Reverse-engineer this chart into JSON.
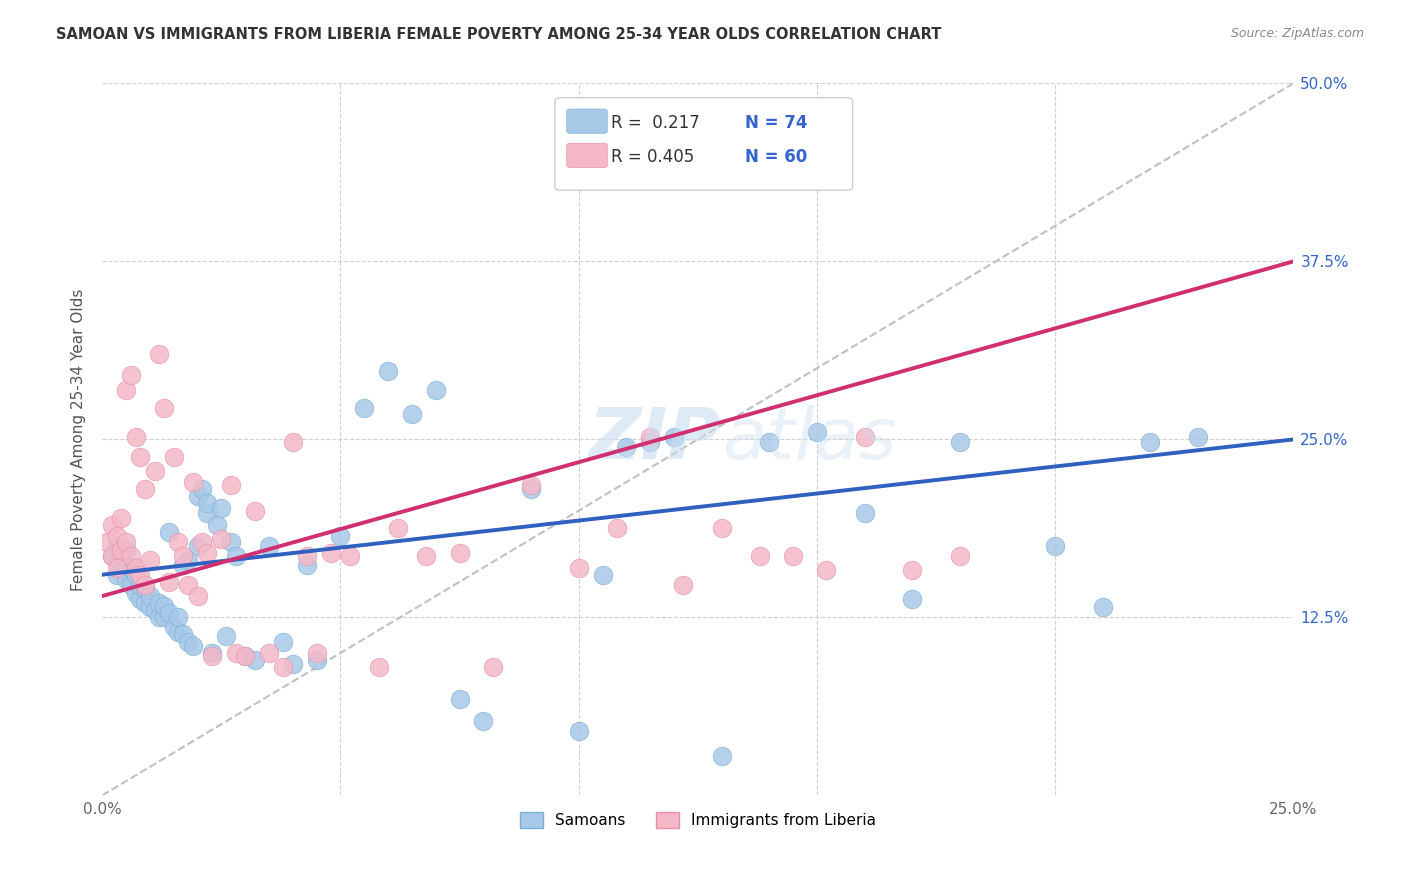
{
  "title": "SAMOAN VS IMMIGRANTS FROM LIBERIA FEMALE POVERTY AMONG 25-34 YEAR OLDS CORRELATION CHART",
  "source": "Source: ZipAtlas.com",
  "ylabel": "Female Poverty Among 25-34 Year Olds",
  "x_min": 0.0,
  "x_max": 0.25,
  "y_min": 0.0,
  "y_max": 0.5,
  "samoans_R": 0.217,
  "samoans_N": 74,
  "liberia_R": 0.405,
  "liberia_N": 60,
  "blue_marker_color": "#a8c8e8",
  "blue_marker_edge": "#7ab0d4",
  "pink_marker_color": "#f4b8c8",
  "pink_marker_edge": "#e890a8",
  "blue_line_color": "#3060c0",
  "pink_line_color": "#d03070",
  "dashed_line_color": "#c0c0c0",
  "legend_label_blue": "Samoans",
  "legend_label_pink": "Immigrants from Liberia",
  "background_color": "#ffffff",
  "grid_color": "#d0d0d0",
  "title_color": "#333333",
  "source_color": "#888888",
  "ylabel_color": "#555555",
  "tick_color": "#3366cc",
  "legend_R_color": "#333333",
  "legend_N_color": "#3366cc",
  "watermark_color": "#c8ddf0",
  "samoans_x": [
    0.002,
    0.003,
    0.003,
    0.004,
    0.004,
    0.005,
    0.005,
    0.005,
    0.006,
    0.006,
    0.007,
    0.007,
    0.008,
    0.008,
    0.009,
    0.009,
    0.01,
    0.01,
    0.011,
    0.012,
    0.012,
    0.013,
    0.013,
    0.014,
    0.014,
    0.015,
    0.016,
    0.016,
    0.017,
    0.017,
    0.018,
    0.018,
    0.019,
    0.02,
    0.02,
    0.021,
    0.022,
    0.022,
    0.023,
    0.024,
    0.025,
    0.026,
    0.027,
    0.028,
    0.03,
    0.032,
    0.035,
    0.038,
    0.04,
    0.043,
    0.045,
    0.05,
    0.055,
    0.06,
    0.065,
    0.07,
    0.075,
    0.08,
    0.09,
    0.1,
    0.105,
    0.11,
    0.115,
    0.12,
    0.13,
    0.14,
    0.15,
    0.16,
    0.17,
    0.18,
    0.2,
    0.21,
    0.22,
    0.23
  ],
  "samoans_y": [
    0.168,
    0.155,
    0.175,
    0.16,
    0.17,
    0.152,
    0.162,
    0.172,
    0.148,
    0.16,
    0.142,
    0.155,
    0.138,
    0.148,
    0.135,
    0.145,
    0.132,
    0.14,
    0.13,
    0.125,
    0.135,
    0.125,
    0.133,
    0.185,
    0.128,
    0.118,
    0.115,
    0.125,
    0.113,
    0.162,
    0.108,
    0.165,
    0.105,
    0.175,
    0.21,
    0.215,
    0.198,
    0.205,
    0.1,
    0.19,
    0.202,
    0.112,
    0.178,
    0.168,
    0.098,
    0.095,
    0.175,
    0.108,
    0.092,
    0.162,
    0.095,
    0.182,
    0.272,
    0.298,
    0.268,
    0.285,
    0.068,
    0.052,
    0.215,
    0.045,
    0.155,
    0.245,
    0.248,
    0.252,
    0.028,
    0.248,
    0.255,
    0.198,
    0.138,
    0.248,
    0.175,
    0.132,
    0.248,
    0.252
  ],
  "liberia_x": [
    0.001,
    0.002,
    0.002,
    0.003,
    0.003,
    0.004,
    0.004,
    0.005,
    0.005,
    0.006,
    0.006,
    0.007,
    0.007,
    0.008,
    0.008,
    0.009,
    0.009,
    0.01,
    0.011,
    0.012,
    0.013,
    0.014,
    0.015,
    0.016,
    0.017,
    0.018,
    0.019,
    0.02,
    0.021,
    0.022,
    0.023,
    0.025,
    0.027,
    0.028,
    0.03,
    0.032,
    0.035,
    0.038,
    0.04,
    0.043,
    0.045,
    0.048,
    0.052,
    0.058,
    0.062,
    0.068,
    0.075,
    0.082,
    0.09,
    0.1,
    0.108,
    0.115,
    0.122,
    0.13,
    0.138,
    0.145,
    0.152,
    0.16,
    0.17,
    0.18
  ],
  "liberia_y": [
    0.178,
    0.19,
    0.168,
    0.182,
    0.16,
    0.195,
    0.172,
    0.178,
    0.285,
    0.168,
    0.295,
    0.16,
    0.252,
    0.155,
    0.238,
    0.148,
    0.215,
    0.165,
    0.228,
    0.31,
    0.272,
    0.15,
    0.238,
    0.178,
    0.168,
    0.148,
    0.22,
    0.14,
    0.178,
    0.17,
    0.098,
    0.18,
    0.218,
    0.1,
    0.098,
    0.2,
    0.1,
    0.09,
    0.248,
    0.168,
    0.1,
    0.17,
    0.168,
    0.09,
    0.188,
    0.168,
    0.17,
    0.09,
    0.218,
    0.16,
    0.188,
    0.252,
    0.148,
    0.188,
    0.168,
    0.168,
    0.158,
    0.252,
    0.158,
    0.168
  ]
}
